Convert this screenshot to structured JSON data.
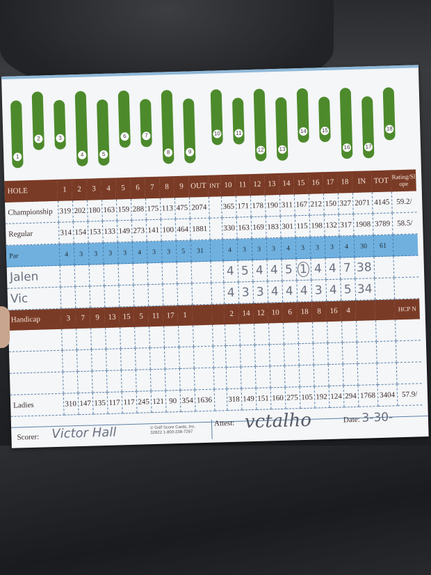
{
  "scorecard": {
    "header": {
      "label": "HOLE",
      "holes_front": [
        "1",
        "2",
        "3",
        "4",
        "5",
        "6",
        "7",
        "8",
        "9"
      ],
      "out": "OUT",
      "int": "INT",
      "holes_back": [
        "10",
        "11",
        "12",
        "13",
        "14",
        "15",
        "16",
        "17",
        "18"
      ],
      "in": "IN",
      "tot": "TOT",
      "rating": "Rating/Slope"
    },
    "championship": {
      "label": "Championship",
      "front": [
        "319",
        "202",
        "180",
        "163",
        "159",
        "288",
        "175",
        "113",
        "475"
      ],
      "out": "2074",
      "back": [
        "365",
        "171",
        "178",
        "190",
        "311",
        "167",
        "212",
        "150",
        "327"
      ],
      "in": "2071",
      "tot": "4145",
      "rating": "59.2/"
    },
    "regular": {
      "label": "Regular",
      "front": [
        "314",
        "154",
        "153",
        "133",
        "149",
        "273",
        "141",
        "100",
        "464"
      ],
      "out": "1881",
      "back": [
        "330",
        "163",
        "169",
        "183",
        "301",
        "115",
        "198",
        "132",
        "317"
      ],
      "in": "1908",
      "tot": "3789",
      "rating": "58.5/"
    },
    "par": {
      "label": "Par",
      "front": [
        "4",
        "3",
        "3",
        "3",
        "3",
        "4",
        "3",
        "3",
        "5"
      ],
      "out": "31",
      "back": [
        "4",
        "3",
        "3",
        "3",
        "4",
        "3",
        "3",
        "3",
        "4"
      ],
      "in": "30",
      "tot": "61"
    },
    "players": [
      {
        "name": "Jalen",
        "back": [
          "4",
          "5",
          "4",
          "4",
          "5",
          "1",
          "4",
          "4",
          "7"
        ],
        "in": "38"
      },
      {
        "name": "Vic",
        "back": [
          "4",
          "3",
          "3",
          "4",
          "4",
          "4",
          "3",
          "4",
          "5"
        ],
        "in": "34"
      }
    ],
    "handicap": {
      "label": "Handicap",
      "front": [
        "3",
        "7",
        "9",
        "13",
        "15",
        "5",
        "11",
        "17",
        "1"
      ],
      "back": [
        "2",
        "14",
        "12",
        "10",
        "6",
        "18",
        "8",
        "16",
        "4"
      ],
      "hcp_label": "HCP N"
    },
    "ladies": {
      "label": "Ladies",
      "front": [
        "310",
        "147",
        "135",
        "117",
        "117",
        "245",
        "121",
        "90",
        "354"
      ],
      "out": "1636",
      "back": [
        "318",
        "149",
        "151",
        "160",
        "275",
        "105",
        "192",
        "124",
        "294"
      ],
      "in": "1768",
      "tot": "3404",
      "rating": "57.9/"
    },
    "footer": {
      "scorer_label": "Scorer:",
      "scorer_value": "Victor Hall",
      "copyright": "© Golf Score Cards, Inc. 32822 1-800-238-7267",
      "attest_label": "Attest:",
      "attest_signature": "vctalho",
      "date_label": "Date:",
      "date_value": "3-30-"
    }
  },
  "colors": {
    "brown_band": "#7a3b26",
    "par_band": "#6fb0df",
    "fairway": "#4d8a2c"
  }
}
